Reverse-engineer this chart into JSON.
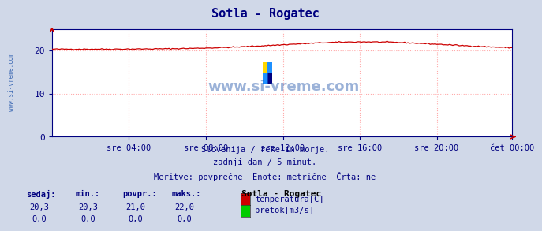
{
  "title": "Sotla - Rogatec",
  "title_color": "#000080",
  "bg_color": "#d0d8e8",
  "plot_bg_color": "#ffffff",
  "grid_color": "#ffaaaa",
  "axis_color": "#000080",
  "watermark": "www.si-vreme.com",
  "watermark_color": "#2255aa",
  "subtitle_lines": [
    "Slovenija / reke in morje.",
    "zadnji dan / 5 minut.",
    "Meritve: povprečne  Enote: metrične  Črta: ne"
  ],
  "subtitle_color": "#000080",
  "x_labels": [
    "sre 04:00",
    "sre 08:00",
    "sre 12:00",
    "sre 16:00",
    "sre 20:00",
    "čet 00:00"
  ],
  "x_label_color": "#000080",
  "ylim": [
    0,
    25
  ],
  "yticks": [
    0,
    10,
    20
  ],
  "n_points": 288,
  "temp_line_color": "#cc0000",
  "flow_line_color": "#00cc00",
  "legend_title": "Sotla - Rogatec",
  "legend_items": [
    {
      "label": "temperatura[C]",
      "color": "#cc0000"
    },
    {
      "label": "pretok[m3/s]",
      "color": "#00cc00"
    }
  ],
  "table_headers": [
    "sedaj:",
    "min.:",
    "povpr.:",
    "maks.:"
  ],
  "table_row1": [
    "20,3",
    "20,3",
    "21,0",
    "22,0"
  ],
  "table_row2": [
    "0,0",
    "0,0",
    "0,0",
    "0,0"
  ],
  "left_label": "www.si-vreme.com",
  "left_label_color": "#2255aa",
  "arrow_color": "#cc0000"
}
